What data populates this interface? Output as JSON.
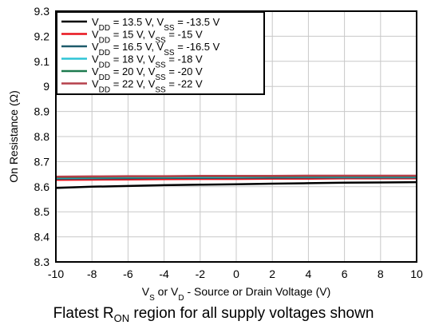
{
  "chart_data": {
    "type": "line",
    "xlabel_parts": [
      "V",
      "S",
      " or V",
      "D",
      " - Source or Drain Voltage (V)"
    ],
    "ylabel": "On Resistance (Ω)",
    "xlim": [
      -10,
      10
    ],
    "ylim": [
      8.3,
      9.3
    ],
    "x_ticks": [
      -10,
      -8,
      -6,
      -4,
      -2,
      0,
      2,
      4,
      6,
      8,
      10
    ],
    "y_ticks": [
      8.3,
      8.4,
      8.5,
      8.6,
      8.7,
      8.8,
      8.9,
      9,
      9.1,
      9.2,
      9.3
    ],
    "grid": true,
    "legend_position": "top-left",
    "x": [
      -10,
      -8,
      -6,
      -4,
      -2,
      0,
      2,
      4,
      6,
      8,
      10
    ],
    "series": [
      {
        "name_parts": [
          "V",
          "DD",
          " = 13.5 V, V",
          "SS",
          " = -13.5 V"
        ],
        "color": "#000000",
        "values": [
          8.595,
          8.6,
          8.603,
          8.606,
          8.608,
          8.61,
          8.612,
          8.614,
          8.616,
          8.617,
          8.618
        ]
      },
      {
        "name_parts": [
          "V",
          "DD",
          " = 15 V, V",
          "SS",
          " = -15 V"
        ],
        "color": "#e8141d",
        "values": [
          8.627,
          8.628,
          8.629,
          8.63,
          8.631,
          8.631,
          8.632,
          8.632,
          8.633,
          8.633,
          8.633
        ]
      },
      {
        "name_parts": [
          "V",
          "DD",
          " = 16.5 V, V",
          "SS",
          " = -16.5 V"
        ],
        "color": "#1d5b6b",
        "values": [
          8.632,
          8.633,
          8.634,
          8.635,
          8.635,
          8.636,
          8.636,
          8.637,
          8.637,
          8.637,
          8.637
        ]
      },
      {
        "name_parts": [
          "V",
          "DD",
          " = 18 V, V",
          "SS",
          " = -18 V"
        ],
        "color": "#2ec4d6",
        "values": [
          8.636,
          8.637,
          8.638,
          8.638,
          8.639,
          8.639,
          8.64,
          8.64,
          8.64,
          8.64,
          8.64
        ]
      },
      {
        "name_parts": [
          "V",
          "DD",
          " = 20 V, V",
          "SS",
          " = -20 V"
        ],
        "color": "#1d7a4e",
        "values": [
          8.638,
          8.639,
          8.64,
          8.64,
          8.641,
          8.641,
          8.641,
          8.642,
          8.642,
          8.642,
          8.642
        ]
      },
      {
        "name_parts": [
          "V",
          "DD",
          " = 22 V, V",
          "SS",
          " = -22 V"
        ],
        "color": "#b5414b",
        "values": [
          8.64,
          8.641,
          8.642,
          8.642,
          8.643,
          8.643,
          8.643,
          8.644,
          8.644,
          8.644,
          8.644
        ]
      }
    ]
  },
  "caption": {
    "prefix": "Flatest R",
    "sub": "ON",
    "suffix": " region for all supply voltages shown"
  }
}
